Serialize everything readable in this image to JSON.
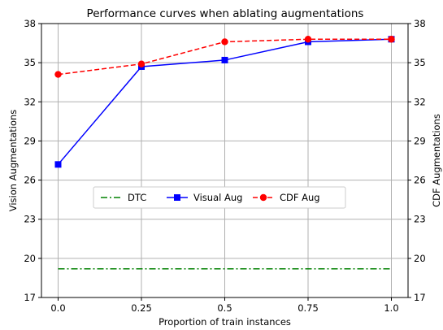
{
  "chart_data": {
    "type": "line",
    "title": "Performance curves when ablating augmentations",
    "xlabel": "Proportion of train instances",
    "ylabel": "Vision Augmentations",
    "ylabel_right": "CDF Augmentations",
    "x": [
      0.0,
      0.25,
      0.5,
      0.75,
      1.0
    ],
    "x_tick_labels": [
      "0.0",
      "0.25",
      "0.5",
      "0.75",
      "1.0"
    ],
    "xlim": [
      -0.05,
      1.05
    ],
    "ylim": [
      17,
      38
    ],
    "y_ticks": [
      17,
      20,
      23,
      26,
      29,
      32,
      35,
      38
    ],
    "y_tick_labels": [
      "17",
      "20",
      "23",
      "26",
      "29",
      "32",
      "35",
      "38"
    ],
    "grid": true,
    "legend_position": "center-left",
    "series": [
      {
        "name": "DTC",
        "values": [
          19.2,
          19.2,
          19.2,
          19.2,
          19.2
        ],
        "color": "#008000",
        "style": "dashdot",
        "marker": "none"
      },
      {
        "name": "Visual Aug",
        "values": [
          27.2,
          34.7,
          35.2,
          36.6,
          36.8
        ],
        "color": "#0000ff",
        "style": "solid",
        "marker": "square"
      },
      {
        "name": "CDF Aug",
        "values": [
          34.1,
          34.9,
          36.6,
          36.8,
          36.8
        ],
        "color": "#ff0000",
        "style": "dashed",
        "marker": "circle"
      }
    ]
  }
}
